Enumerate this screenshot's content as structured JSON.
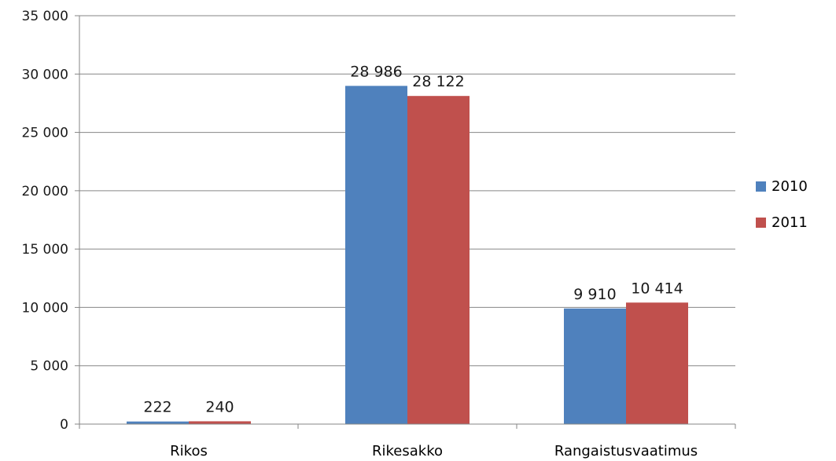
{
  "chart_data": {
    "type": "bar",
    "title": "",
    "xlabel": "",
    "ylabel": "",
    "categories": [
      "Rikos",
      "Rikesakko",
      "Rangaistusvaatimus"
    ],
    "series": [
      {
        "name": "2010",
        "color": "#4f81bd",
        "values": [
          222,
          28986,
          9910
        ],
        "labels": [
          "222",
          "28 986",
          "9 910"
        ]
      },
      {
        "name": "2011",
        "color": "#c0504d",
        "values": [
          240,
          28122,
          10414
        ],
        "labels": [
          "240",
          "28 122",
          "10 414"
        ]
      }
    ],
    "ylim": [
      0,
      35000
    ],
    "ytick_values": [
      0,
      5000,
      10000,
      15000,
      20000,
      25000,
      30000,
      35000
    ],
    "ytick_labels": [
      "0",
      "5 000",
      "10 000",
      "15 000",
      "20 000",
      "25 000",
      "30 000",
      "35 000"
    ],
    "grid": true,
    "legend_position": "right"
  }
}
